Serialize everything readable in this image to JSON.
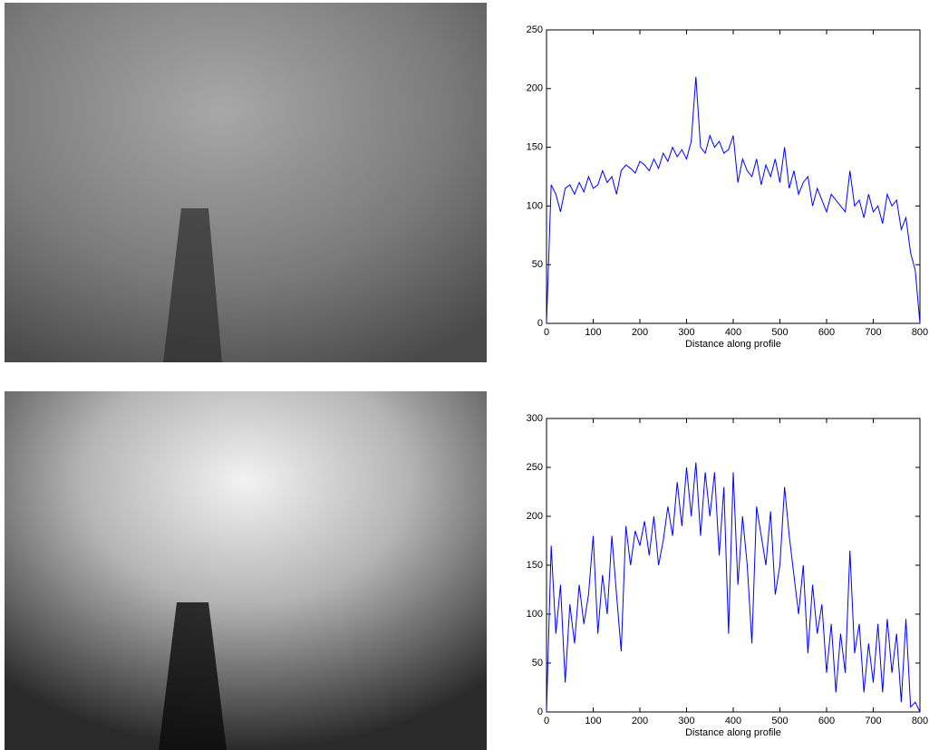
{
  "chart_data": [
    {
      "type": "line",
      "xlabel": "Distance along profile",
      "color": "#0000ff",
      "x": [
        0,
        10,
        20,
        30,
        40,
        50,
        60,
        70,
        80,
        90,
        100,
        110,
        120,
        130,
        140,
        150,
        160,
        170,
        180,
        190,
        200,
        210,
        220,
        230,
        240,
        250,
        260,
        270,
        280,
        290,
        300,
        310,
        320,
        330,
        340,
        350,
        360,
        370,
        380,
        390,
        400,
        410,
        420,
        430,
        440,
        450,
        460,
        470,
        480,
        490,
        500,
        510,
        520,
        530,
        540,
        550,
        560,
        570,
        580,
        590,
        600,
        610,
        620,
        630,
        640,
        650,
        660,
        670,
        680,
        690,
        700,
        710,
        720,
        730,
        740,
        750,
        760,
        770,
        780,
        790,
        800
      ],
      "values": [
        0,
        118,
        110,
        95,
        115,
        118,
        110,
        120,
        112,
        125,
        115,
        118,
        130,
        120,
        125,
        110,
        130,
        135,
        132,
        128,
        138,
        135,
        130,
        140,
        132,
        145,
        138,
        150,
        142,
        148,
        140,
        155,
        210,
        150,
        145,
        160,
        150,
        155,
        145,
        148,
        160,
        120,
        140,
        130,
        125,
        140,
        118,
        135,
        125,
        140,
        120,
        150,
        115,
        130,
        110,
        120,
        125,
        100,
        115,
        105,
        95,
        110,
        105,
        100,
        95,
        130,
        100,
        105,
        90,
        110,
        95,
        100,
        85,
        110,
        100,
        105,
        80,
        90,
        60,
        45,
        0
      ],
      "xlim": [
        0,
        800
      ],
      "xticks": [
        0,
        100,
        200,
        300,
        400,
        500,
        600,
        700,
        800
      ],
      "ylim": [
        0,
        250
      ],
      "yticks": [
        0,
        50,
        100,
        150,
        200,
        250
      ]
    },
    {
      "type": "line",
      "xlabel": "Distance along profile",
      "color": "#0000ff",
      "x": [
        0,
        10,
        20,
        30,
        40,
        50,
        60,
        70,
        80,
        90,
        100,
        110,
        120,
        130,
        140,
        150,
        160,
        170,
        180,
        190,
        200,
        210,
        220,
        230,
        240,
        250,
        260,
        270,
        280,
        290,
        300,
        310,
        320,
        330,
        340,
        350,
        360,
        370,
        380,
        390,
        400,
        410,
        420,
        430,
        440,
        450,
        460,
        470,
        480,
        490,
        500,
        510,
        520,
        530,
        540,
        550,
        560,
        570,
        580,
        590,
        600,
        610,
        620,
        630,
        640,
        650,
        660,
        670,
        680,
        690,
        700,
        710,
        720,
        730,
        740,
        750,
        760,
        770,
        780,
        790,
        800
      ],
      "values": [
        0,
        170,
        80,
        130,
        30,
        110,
        70,
        130,
        90,
        120,
        180,
        80,
        140,
        100,
        180,
        120,
        62,
        190,
        150,
        185,
        170,
        195,
        160,
        200,
        150,
        175,
        210,
        180,
        235,
        190,
        250,
        200,
        255,
        180,
        245,
        200,
        245,
        160,
        230,
        80,
        245,
        130,
        200,
        150,
        70,
        210,
        180,
        150,
        205,
        120,
        150,
        230,
        180,
        140,
        100,
        150,
        60,
        130,
        80,
        110,
        40,
        90,
        20,
        80,
        40,
        165,
        60,
        90,
        20,
        70,
        30,
        90,
        20,
        95,
        40,
        80,
        10,
        95,
        5,
        10,
        0
      ],
      "xlim": [
        0,
        800
      ],
      "xticks": [
        0,
        100,
        200,
        300,
        400,
        500,
        600,
        700,
        800
      ],
      "ylim": [
        0,
        300
      ],
      "yticks": [
        0,
        50,
        100,
        150,
        200,
        250,
        300
      ]
    }
  ]
}
